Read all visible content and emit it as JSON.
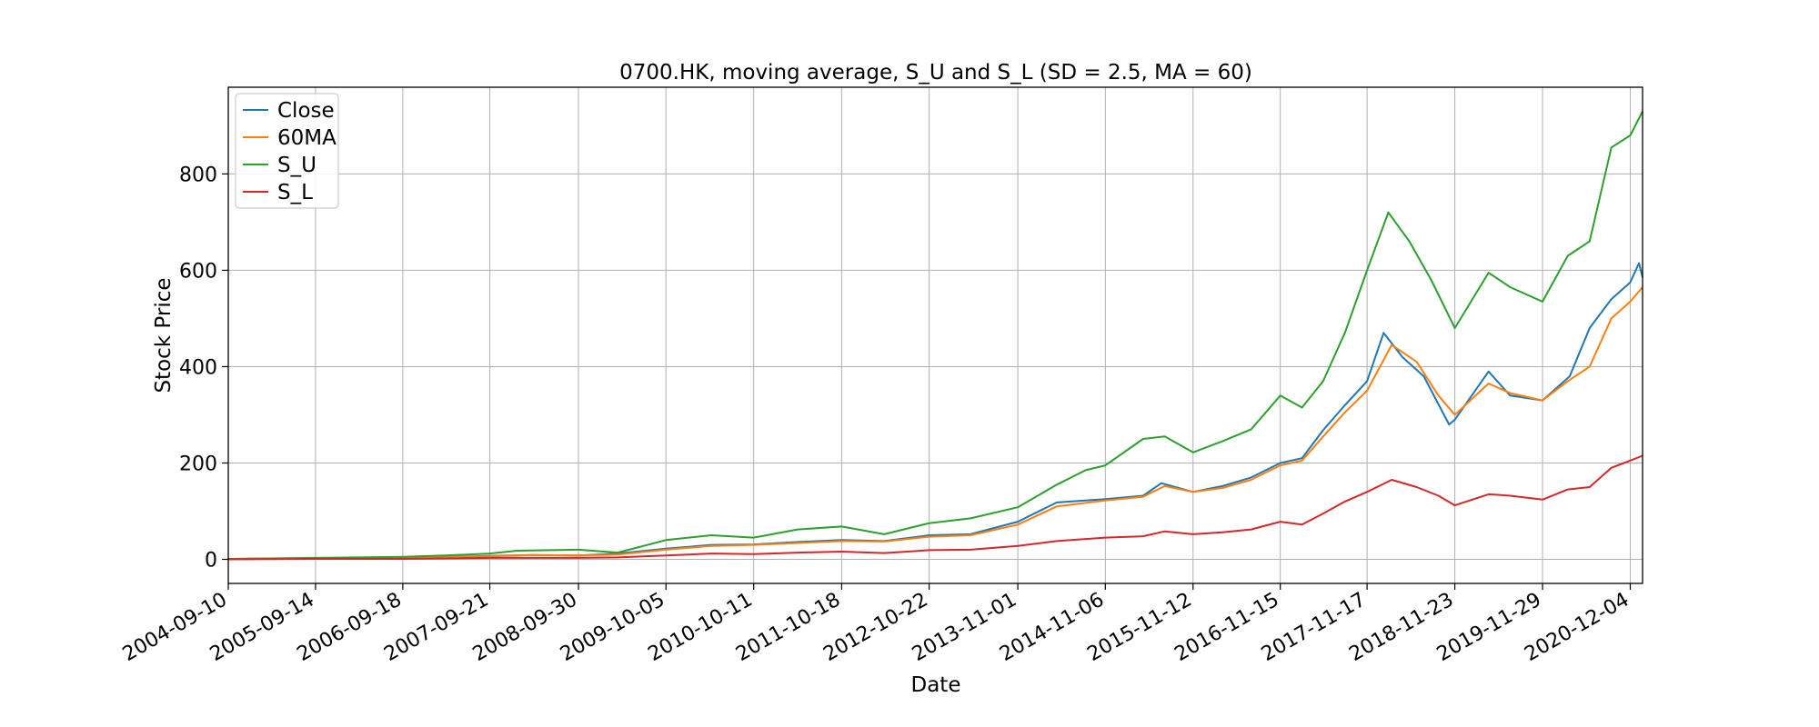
{
  "chart_data": {
    "type": "line",
    "title": "0700.HK, moving average, S_U and S_L (SD = 2.5, MA = 60)",
    "xlabel": "Date",
    "ylabel": "Stock Price",
    "xlim": [
      "2004-09-10",
      "2021-01-25"
    ],
    "ylim": [
      -50,
      980
    ],
    "grid": true,
    "legend_position": "top-left",
    "x_ticks": [
      "2004-09-10",
      "2005-09-14",
      "2006-09-18",
      "2007-09-21",
      "2008-09-30",
      "2009-10-05",
      "2010-10-11",
      "2011-10-18",
      "2012-10-22",
      "2013-11-01",
      "2014-11-06",
      "2015-11-12",
      "2016-11-15",
      "2017-11-17",
      "2018-11-23",
      "2019-11-29",
      "2020-12-04"
    ],
    "y_ticks": [
      0,
      200,
      400,
      600,
      800
    ],
    "series": [
      {
        "name": "Close",
        "color": "#1f77b4",
        "x": [
          "2004-09-10",
          "2005-09-14",
          "2006-09-18",
          "2007-09-21",
          "2008-03-15",
          "2008-09-30",
          "2009-03-15",
          "2009-10-05",
          "2010-04-15",
          "2010-10-11",
          "2011-04-15",
          "2011-10-18",
          "2012-04-15",
          "2012-10-22",
          "2013-04-15",
          "2013-11-01",
          "2014-04-15",
          "2014-11-06",
          "2015-04-15",
          "2015-07-01",
          "2015-11-12",
          "2016-03-15",
          "2016-07-15",
          "2016-11-15",
          "2017-02-15",
          "2017-05-15",
          "2017-08-15",
          "2017-11-17",
          "2018-01-26",
          "2018-04-15",
          "2018-07-15",
          "2018-10-30",
          "2018-11-23",
          "2019-04-15",
          "2019-07-15",
          "2019-11-29",
          "2020-03-23",
          "2020-06-15",
          "2020-09-15",
          "2020-12-04",
          "2021-01-10",
          "2021-01-25"
        ],
        "values": [
          1,
          2,
          3,
          7,
          9,
          8,
          12,
          22,
          30,
          31,
          36,
          40,
          38,
          50,
          52,
          78,
          118,
          125,
          132,
          158,
          140,
          152,
          170,
          200,
          210,
          268,
          320,
          370,
          470,
          420,
          380,
          280,
          290,
          390,
          340,
          330,
          380,
          480,
          540,
          575,
          615,
          585
        ]
      },
      {
        "name": "60MA",
        "color": "#ff7f0e",
        "x": [
          "2004-09-10",
          "2005-09-14",
          "2006-09-18",
          "2007-09-21",
          "2008-03-15",
          "2008-09-30",
          "2009-03-15",
          "2009-10-05",
          "2010-04-15",
          "2010-10-11",
          "2011-04-15",
          "2011-10-18",
          "2012-04-15",
          "2012-10-22",
          "2013-04-15",
          "2013-11-01",
          "2014-04-15",
          "2014-11-06",
          "2015-04-15",
          "2015-07-15",
          "2015-11-12",
          "2016-03-15",
          "2016-07-15",
          "2016-11-15",
          "2017-02-15",
          "2017-05-15",
          "2017-08-15",
          "2017-11-17",
          "2018-03-01",
          "2018-06-15",
          "2018-09-15",
          "2018-11-23",
          "2019-04-15",
          "2019-07-15",
          "2019-11-29",
          "2020-03-15",
          "2020-06-15",
          "2020-09-15",
          "2020-12-04",
          "2021-01-25"
        ],
        "values": [
          1,
          2,
          3,
          6,
          9,
          8,
          10,
          20,
          28,
          30,
          34,
          38,
          37,
          47,
          50,
          72,
          110,
          122,
          130,
          152,
          140,
          148,
          165,
          195,
          205,
          255,
          305,
          350,
          445,
          410,
          340,
          300,
          365,
          345,
          330,
          370,
          400,
          500,
          535,
          565
        ]
      },
      {
        "name": "S_U",
        "color": "#2ca02c",
        "x": [
          "2004-09-10",
          "2005-09-14",
          "2006-09-18",
          "2007-03-15",
          "2007-09-21",
          "2008-01-15",
          "2008-09-30",
          "2009-03-15",
          "2009-10-05",
          "2010-04-15",
          "2010-10-11",
          "2011-04-15",
          "2011-10-18",
          "2012-04-15",
          "2012-10-22",
          "2013-04-15",
          "2013-11-01",
          "2014-04-15",
          "2014-08-15",
          "2014-11-06",
          "2015-04-15",
          "2015-07-15",
          "2015-11-12",
          "2016-03-15",
          "2016-07-15",
          "2016-11-15",
          "2017-02-15",
          "2017-05-15",
          "2017-08-15",
          "2017-11-17",
          "2018-02-15",
          "2018-05-15",
          "2018-08-15",
          "2018-11-23",
          "2019-04-15",
          "2019-07-15",
          "2019-11-29",
          "2020-03-15",
          "2020-06-15",
          "2020-09-15",
          "2020-12-04",
          "2021-01-25"
        ],
        "values": [
          1,
          3,
          5,
          8,
          12,
          18,
          20,
          14,
          40,
          50,
          45,
          62,
          68,
          52,
          75,
          85,
          108,
          155,
          185,
          195,
          250,
          255,
          222,
          245,
          270,
          340,
          315,
          370,
          470,
          600,
          720,
          660,
          580,
          480,
          595,
          565,
          535,
          630,
          660,
          855,
          880,
          930
        ]
      },
      {
        "name": "S_L",
        "color": "#d62728",
        "x": [
          "2004-09-10",
          "2005-09-14",
          "2006-09-18",
          "2007-09-21",
          "2008-09-30",
          "2009-03-15",
          "2009-10-05",
          "2010-04-15",
          "2010-10-11",
          "2011-04-15",
          "2011-10-18",
          "2012-04-15",
          "2012-10-22",
          "2013-04-15",
          "2013-11-01",
          "2014-04-15",
          "2014-11-06",
          "2015-04-15",
          "2015-07-15",
          "2015-11-12",
          "2016-03-15",
          "2016-07-15",
          "2016-11-15",
          "2017-02-15",
          "2017-05-15",
          "2017-08-15",
          "2017-11-17",
          "2018-03-01",
          "2018-06-15",
          "2018-09-15",
          "2018-11-23",
          "2019-04-15",
          "2019-07-15",
          "2019-11-29",
          "2020-03-15",
          "2020-06-15",
          "2020-09-15",
          "2020-12-04",
          "2021-01-25"
        ],
        "values": [
          0,
          1,
          1,
          3,
          3,
          4,
          8,
          12,
          11,
          14,
          16,
          13,
          19,
          20,
          28,
          38,
          45,
          48,
          58,
          52,
          56,
          62,
          78,
          72,
          95,
          120,
          140,
          165,
          150,
          132,
          112,
          135,
          132,
          124,
          145,
          150,
          190,
          205,
          215
        ]
      }
    ]
  }
}
